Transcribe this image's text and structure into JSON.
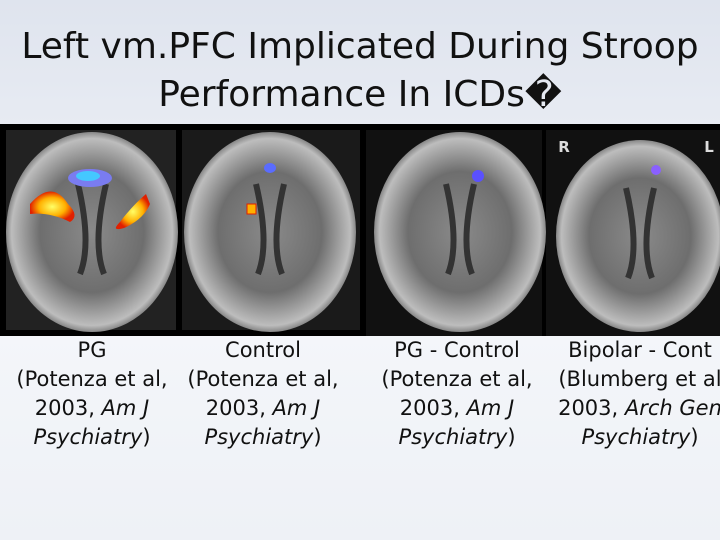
{
  "title": {
    "line1": "Left vm.PFC Implicated During Stroop",
    "line2": "Performance In ICDs�"
  },
  "orientation": {
    "right": "R",
    "left": "L"
  },
  "panels": [
    {
      "line1": "PG",
      "line2": "(Potenza et al,",
      "year": "2003, ",
      "journal": "Am J",
      "journal2": "Psychiatry",
      "close": ")"
    },
    {
      "line1": "Control",
      "line2": "(Potenza et al,",
      "year": "2003, ",
      "journal": "Am J",
      "journal2": "Psychiatry",
      "close": ")"
    },
    {
      "line1": "PG - Control",
      "line2": "(Potenza et al,",
      "year": "2003, ",
      "journal": "Am J",
      "journal2": "Psychiatry",
      "close": ")"
    },
    {
      "line1": "Bipolar - Cont",
      "line2": "(Blumberg et al",
      "year": "2003, ",
      "journal": "Arch Gen",
      "journal2": "Psychiatry",
      "close": ")"
    }
  ]
}
